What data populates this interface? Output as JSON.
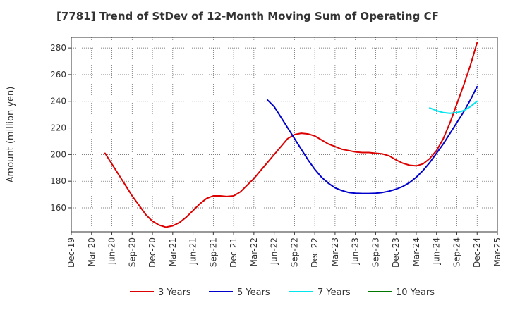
{
  "chart_data": {
    "type": "line",
    "title": "[7781]  Trend of StDev of 12-Month Moving Sum of Operating CF",
    "xlabel": "",
    "ylabel": "Amount (million yen)",
    "x_ticks": [
      "Dec-19",
      "Mar-20",
      "Jun-20",
      "Sep-20",
      "Dec-20",
      "Mar-21",
      "Jun-21",
      "Sep-21",
      "Dec-21",
      "Mar-22",
      "Jun-22",
      "Sep-22",
      "Dec-22",
      "Mar-23",
      "Jun-23",
      "Sep-23",
      "Dec-23",
      "Mar-24",
      "Jun-24",
      "Sep-24",
      "Dec-24",
      "Mar-25"
    ],
    "y_ticks": [
      160,
      180,
      200,
      220,
      240,
      260,
      280
    ],
    "ylim": [
      142,
      288
    ],
    "grid": true,
    "legend_position": "bottom",
    "series": [
      {
        "name": "3 Years",
        "color": "#dd0000",
        "points": [
          [
            "2020-05",
            201
          ],
          [
            "2020-06",
            193
          ],
          [
            "2020-07",
            185
          ],
          [
            "2020-08",
            177
          ],
          [
            "2020-09",
            169
          ],
          [
            "2020-10",
            162
          ],
          [
            "2020-11",
            155
          ],
          [
            "2020-12",
            150
          ],
          [
            "2021-01",
            147
          ],
          [
            "2021-02",
            145.5
          ],
          [
            "2021-03",
            146.5
          ],
          [
            "2021-04",
            149
          ],
          [
            "2021-05",
            153
          ],
          [
            "2021-06",
            158
          ],
          [
            "2021-07",
            163
          ],
          [
            "2021-08",
            167
          ],
          [
            "2021-09",
            169
          ],
          [
            "2021-10",
            169
          ],
          [
            "2021-11",
            168.5
          ],
          [
            "2021-12",
            169
          ],
          [
            "2022-01",
            172
          ],
          [
            "2022-02",
            177
          ],
          [
            "2022-03",
            182
          ],
          [
            "2022-04",
            188
          ],
          [
            "2022-05",
            194
          ],
          [
            "2022-06",
            200
          ],
          [
            "2022-07",
            206
          ],
          [
            "2022-08",
            212
          ],
          [
            "2022-09",
            215
          ],
          [
            "2022-10",
            216
          ],
          [
            "2022-11",
            215.5
          ],
          [
            "2022-12",
            214
          ],
          [
            "2023-01",
            211
          ],
          [
            "2023-02",
            208
          ],
          [
            "2023-03",
            206
          ],
          [
            "2023-04",
            204
          ],
          [
            "2023-05",
            203
          ],
          [
            "2023-06",
            202
          ],
          [
            "2023-07",
            201.5
          ],
          [
            "2023-08",
            201.5
          ],
          [
            "2023-09",
            201
          ],
          [
            "2023-10",
            200.5
          ],
          [
            "2023-11",
            199
          ],
          [
            "2023-12",
            196
          ],
          [
            "2024-01",
            193.5
          ],
          [
            "2024-02",
            192
          ],
          [
            "2024-03",
            191.5
          ],
          [
            "2024-04",
            193
          ],
          [
            "2024-05",
            197
          ],
          [
            "2024-06",
            203
          ],
          [
            "2024-07",
            212
          ],
          [
            "2024-08",
            224
          ],
          [
            "2024-09",
            238
          ],
          [
            "2024-10",
            252
          ],
          [
            "2024-11",
            267
          ],
          [
            "2024-12",
            284
          ]
        ]
      },
      {
        "name": "5 Years",
        "color": "#0000cc",
        "points": [
          [
            "2022-05",
            241
          ],
          [
            "2022-06",
            236
          ],
          [
            "2022-07",
            228
          ],
          [
            "2022-08",
            220
          ],
          [
            "2022-09",
            212
          ],
          [
            "2022-10",
            204
          ],
          [
            "2022-11",
            196
          ],
          [
            "2022-12",
            189
          ],
          [
            "2023-01",
            183
          ],
          [
            "2023-02",
            178.5
          ],
          [
            "2023-03",
            175
          ],
          [
            "2023-04",
            173
          ],
          [
            "2023-05",
            171.5
          ],
          [
            "2023-06",
            171
          ],
          [
            "2023-07",
            170.8
          ],
          [
            "2023-08",
            170.8
          ],
          [
            "2023-09",
            171
          ],
          [
            "2023-10",
            171.5
          ],
          [
            "2023-11",
            172.5
          ],
          [
            "2023-12",
            174
          ],
          [
            "2024-01",
            176
          ],
          [
            "2024-02",
            179
          ],
          [
            "2024-03",
            183
          ],
          [
            "2024-04",
            188
          ],
          [
            "2024-05",
            194
          ],
          [
            "2024-06",
            201
          ],
          [
            "2024-07",
            208
          ],
          [
            "2024-08",
            216
          ],
          [
            "2024-09",
            224
          ],
          [
            "2024-10",
            232
          ],
          [
            "2024-11",
            241
          ],
          [
            "2024-12",
            251
          ]
        ]
      },
      {
        "name": "7 Years",
        "color": "#00e5ee",
        "points": [
          [
            "2024-05",
            235
          ],
          [
            "2024-06",
            233
          ],
          [
            "2024-07",
            231.5
          ],
          [
            "2024-08",
            231
          ],
          [
            "2024-09",
            231.5
          ],
          [
            "2024-10",
            233
          ],
          [
            "2024-11",
            236
          ],
          [
            "2024-12",
            240
          ]
        ]
      },
      {
        "name": "10 Years",
        "color": "#007700",
        "points": []
      }
    ]
  }
}
